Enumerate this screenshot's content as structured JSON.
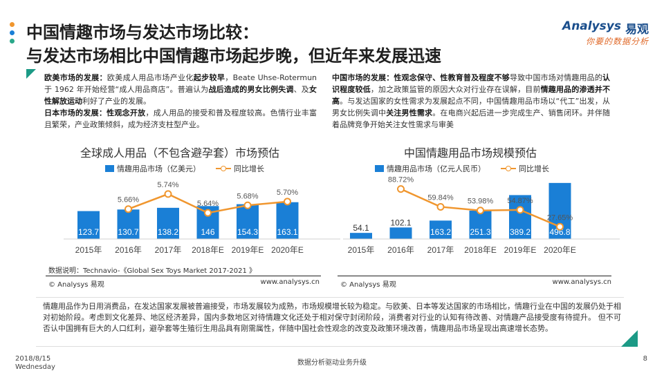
{
  "header": {
    "title_line1": "中国情趣市场与发达市场比较：",
    "title_line2": "与发达市场相比中国情趣市场起步晚，但近年来发展迅速",
    "dot_colors": [
      "#f0962e",
      "#1a7fd6",
      "#2aa88a"
    ]
  },
  "logo": {
    "brand": "Analysys",
    "brand_cn": "易观",
    "slogan": "你要的数据分析"
  },
  "left_block": {
    "p1_label": "欧美市场的发展：",
    "p1_t1": "欧美成人用品市场产业化",
    "p1_b1": "起步较早",
    "p1_t2": "，Beate Uhse-Rotermun 于 1962 年开始经营“成人用品商店”。普遍认为",
    "p1_b2": "战后造成的男女比例失调",
    "p1_t3": "、及",
    "p1_b3": "女性解放运动",
    "p1_t4": "利好了产业的发展。",
    "p2_label": "日本市场的发展：",
    "p2_b1": "性观念开放",
    "p2_t1": "，成人用品的接受和普及程度较高。色情行业丰富且繁荣，产业政策倾斜，成为经济支柱型产业。"
  },
  "right_block": {
    "label": "中国市场的发展：",
    "b1": "性观念保守、性教育普及程度不够",
    "t1": "导致中国市场对情趣用品的",
    "b2": "认识程度较低",
    "t2": "，加之政策监管的原因大众对行业存在误解，目前",
    "b3": "情趣用品的渗透并不高",
    "t3": "。与发达国家的女性需求为发展起点不同，中国情趣用品市场以“代工”出发，从男女比例失调中",
    "b4": "关注男性需求",
    "t4": "。在电商兴起后进一步完成生产、销售闭环。并伴随着品牌竞争开始关注女性需求与审美"
  },
  "chart1": {
    "title": "全球成人用品（不包含避孕套）市场预估",
    "legend_bar": "情趣用品市场（亿美元）",
    "legend_line": "同比增长",
    "note": "数据说明：Technavio-《Global Sex Toys Market 2017-2021 》",
    "copyright": "© Analysys 易观",
    "url": "www.analysys.cn"
  },
  "chart2": {
    "title": "中国情趣用品市场规模预估",
    "legend_bar": "情趣用品市场（亿元人民币）",
    "legend_line": "同比增长",
    "copyright": "© Analysys 易观",
    "url": "www.analysys.cn"
  },
  "chart_data": [
    {
      "type": "bar",
      "title": "全球成人用品（不包含避孕套）市场预估",
      "categories": [
        "2015年",
        "2016年",
        "2017年",
        "2018年E",
        "2019年E",
        "2020年E"
      ],
      "series": [
        {
          "name": "情趣用品市场（亿美元）",
          "type": "bar",
          "values": [
            123.7,
            130.7,
            138.2,
            146,
            154.3,
            163.1
          ],
          "labels": [
            "123.7",
            "130.7",
            "138.2",
            "146",
            "154.3",
            "163.1"
          ]
        },
        {
          "name": "同比增长",
          "type": "line",
          "values": [
            null,
            5.66,
            5.74,
            5.64,
            5.68,
            5.7
          ],
          "labels": [
            "",
            "5.66%",
            "5.74%",
            "5.64%",
            "5.68%",
            "5.70%"
          ]
        }
      ],
      "bar_color": "#1a7fd6",
      "line_color": "#f0962e",
      "ylim_bar": [
        0,
        300
      ],
      "ylim_line": [
        5.45,
        5.78
      ]
    },
    {
      "type": "bar",
      "title": "中国情趣用品市场规模预估",
      "categories": [
        "2015年",
        "2016年",
        "2017年",
        "2018年E",
        "2019年E",
        "2020年E"
      ],
      "series": [
        {
          "name": "情趣用品市场（亿元人民币）",
          "type": "bar",
          "values": [
            54.1,
            102.1,
            163.2,
            251.3,
            389.2,
            496.8
          ],
          "labels": [
            "54.1",
            "102.1",
            "163.2",
            "251.3",
            "389.2",
            "496.8"
          ]
        },
        {
          "name": "同比增长",
          "type": "line",
          "values": [
            null,
            88.72,
            59.84,
            53.98,
            54.87,
            27.65
          ],
          "labels": [
            "",
            "88.72%",
            "59.84%",
            "53.98%",
            "54.87%",
            "27.65%"
          ]
        }
      ],
      "bar_color": "#1a7fd6",
      "line_color": "#f0962e",
      "ylim_bar": [
        0,
        600
      ],
      "ylim_line": [
        0,
        95
      ]
    }
  ],
  "summary": "情趣用品作为日用消费品，在发达国家发展被普遍接受，市场发展较为成熟，市场规模增长较为稳定。与欧美、日本等发达国家的市场相比，情趣行业在中国的发展仍处于相对初始阶段。考虑到文化差异、地区经济差异，国内多数地区对待情趣文化还处于相对保守封闭阶段，消费者对行业的认知有待改善、对情趣产品接受度有待提升。 但不可否认中国拥有巨大的人口红利，避孕套等生殖衍生用品具有刚需属性，伴随中国社会性观念的改变及政策环境改善，情趣用品市场呈现出高速增长态势。",
  "footer": {
    "date": "2018/8/15",
    "weekday": "Wednesday",
    "slogan": "数据分析驱动业务升级",
    "page": "8"
  }
}
